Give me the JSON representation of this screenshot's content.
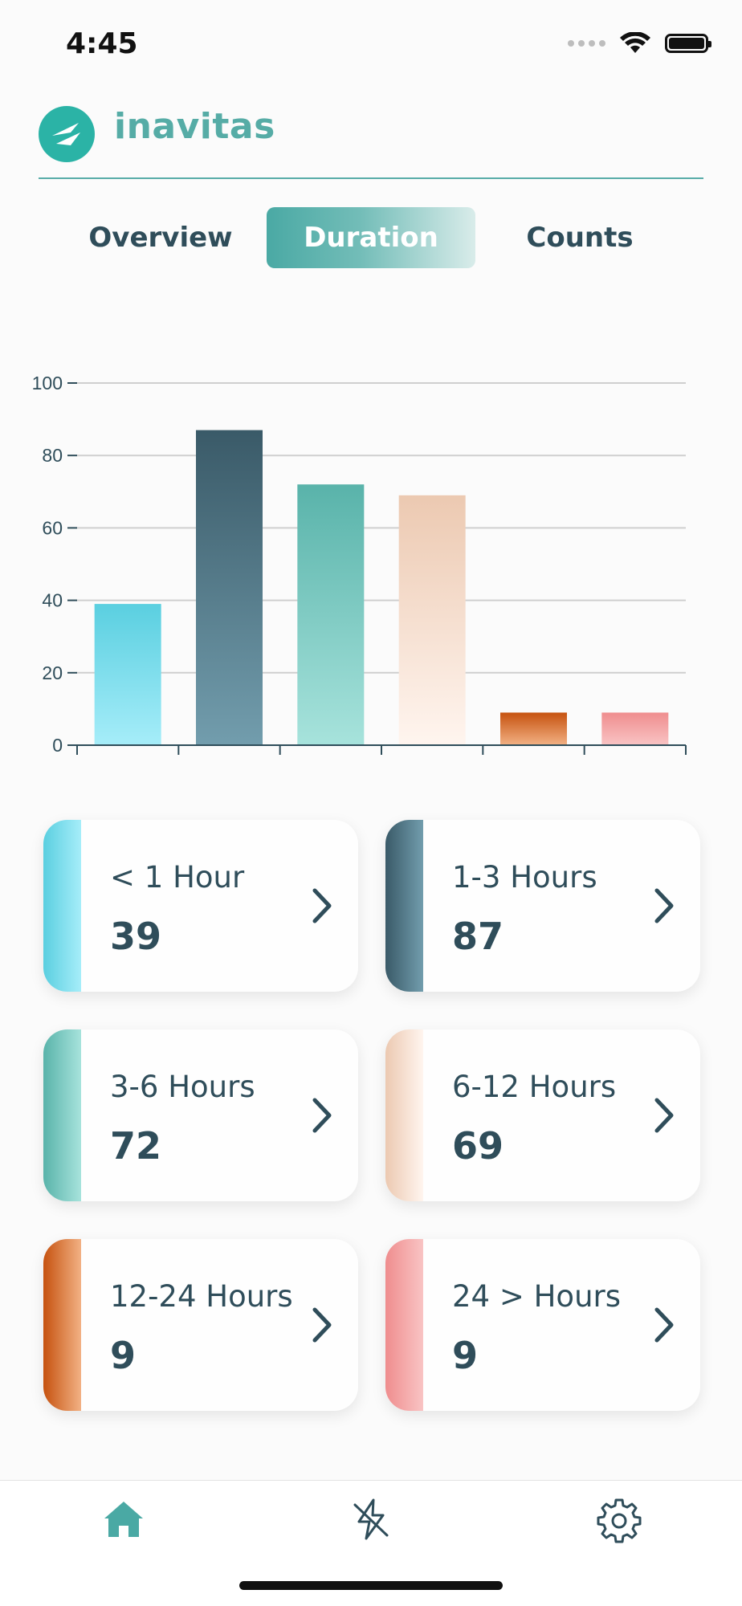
{
  "status_bar": {
    "time": "4:45"
  },
  "header": {
    "brand": "inavitas"
  },
  "tabs": [
    {
      "label": "Overview",
      "active": false
    },
    {
      "label": "Duration",
      "active": true
    },
    {
      "label": "Counts",
      "active": false
    }
  ],
  "colors": {
    "accent": "#56aca6",
    "text": "#2f4d5a",
    "series": [
      [
        "#5acfe0",
        "#a6edf9"
      ],
      [
        "#3a5a68",
        "#729dad"
      ],
      [
        "#59b3aa",
        "#a7e3dc"
      ],
      [
        "#ecc9b1",
        "#fff5ef"
      ],
      [
        "#c6520f",
        "#f2b184"
      ],
      [
        "#ef8d8e",
        "#f9c4c4"
      ]
    ]
  },
  "chart_data": {
    "type": "bar",
    "categories": [
      "< 1 Hour",
      "1-3 Hours",
      "3-6 Hours",
      "6-12 Hours",
      "12-24 Hours",
      "24 > Hours"
    ],
    "values": [
      39,
      87,
      72,
      69,
      9,
      9
    ],
    "yticks": [
      0,
      20,
      40,
      60,
      80,
      100
    ],
    "ylim": [
      0,
      100
    ],
    "grid": true,
    "xlabel": "",
    "ylabel": "",
    "title": ""
  },
  "cards": [
    {
      "label": "< 1 Hour",
      "value": "39"
    },
    {
      "label": "1-3 Hours",
      "value": "87"
    },
    {
      "label": "3-6 Hours",
      "value": "72"
    },
    {
      "label": "6-12 Hours",
      "value": "69"
    },
    {
      "label": "12-24 Hours",
      "value": "9"
    },
    {
      "label": "24 > Hours",
      "value": "9"
    }
  ],
  "bottom_nav": [
    {
      "icon": "home-icon",
      "active": true
    },
    {
      "icon": "lightning-off-icon",
      "active": false
    },
    {
      "icon": "gear-icon",
      "active": false
    }
  ]
}
